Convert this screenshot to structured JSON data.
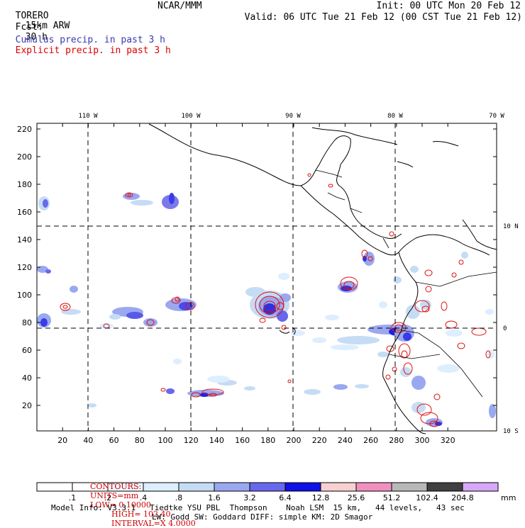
{
  "header": {
    "model": "TORERO",
    "resolution": "15km ARW",
    "center": "NCAR/MMM",
    "init": "Init: 00 UTC Mon 20 Feb 12",
    "fcst_label": "Fcst:",
    "fcst_value": "30 h",
    "valid": "Valid: 06 UTC Tue 21 Feb 12 (00 CST Tue 21 Feb 12)"
  },
  "legend": {
    "cumulus": "Cumulus precip. in past 3 h",
    "explicit": "Explicit precip. in past 3 h",
    "cumulus_color": "#3a3ab0",
    "explicit_color": "#dd0000"
  },
  "map": {
    "top_lon_labels": [
      "110 W",
      "100 W",
      "90 W",
      "80 W",
      "70 W"
    ],
    "right_lat_labels": [
      "10 N",
      "0",
      "10 S"
    ],
    "x_ticks": [
      "20",
      "40",
      "60",
      "80",
      "100",
      "120",
      "140",
      "160",
      "180",
      "200",
      "220",
      "240",
      "260",
      "280",
      "300",
      "320"
    ],
    "y_ticks": [
      "20",
      "40",
      "60",
      "80",
      "100",
      "120",
      "140",
      "160",
      "180",
      "200",
      "220"
    ]
  },
  "contours": {
    "title": "CONTOURS:",
    "units": "UNITS=mm",
    "low": "LOW= 0.10000",
    "high": "HIGH= 102.40",
    "interval": "INTERVAL=X 4.0000"
  },
  "colorbar": {
    "labels": [
      ".1",
      ".2",
      ".4",
      ".8",
      "1.6",
      "3.2",
      "6.4",
      "12.8",
      "25.6",
      "51.2",
      "102.4",
      "204.8"
    ],
    "colors": [
      "#ffffff",
      "#ffffff",
      "#eef6ff",
      "#ddeeff",
      "#c6dcf4",
      "#9aa8f0",
      "#6868ee",
      "#1010e8",
      "#f7d0d0",
      "#f090c0",
      "#b8b8b8",
      "#404040",
      "#d8a8f8"
    ],
    "unit": "mm"
  },
  "footer": {
    "line1": "Model Info: V3.3.1   Tiedtke YSU PBL  Thompson    Noah LSM  15 km,   44 levels,   43 sec",
    "line2": "LW: Godd SW: Goddard DIFF: simple KM: 2D Smagor"
  }
}
